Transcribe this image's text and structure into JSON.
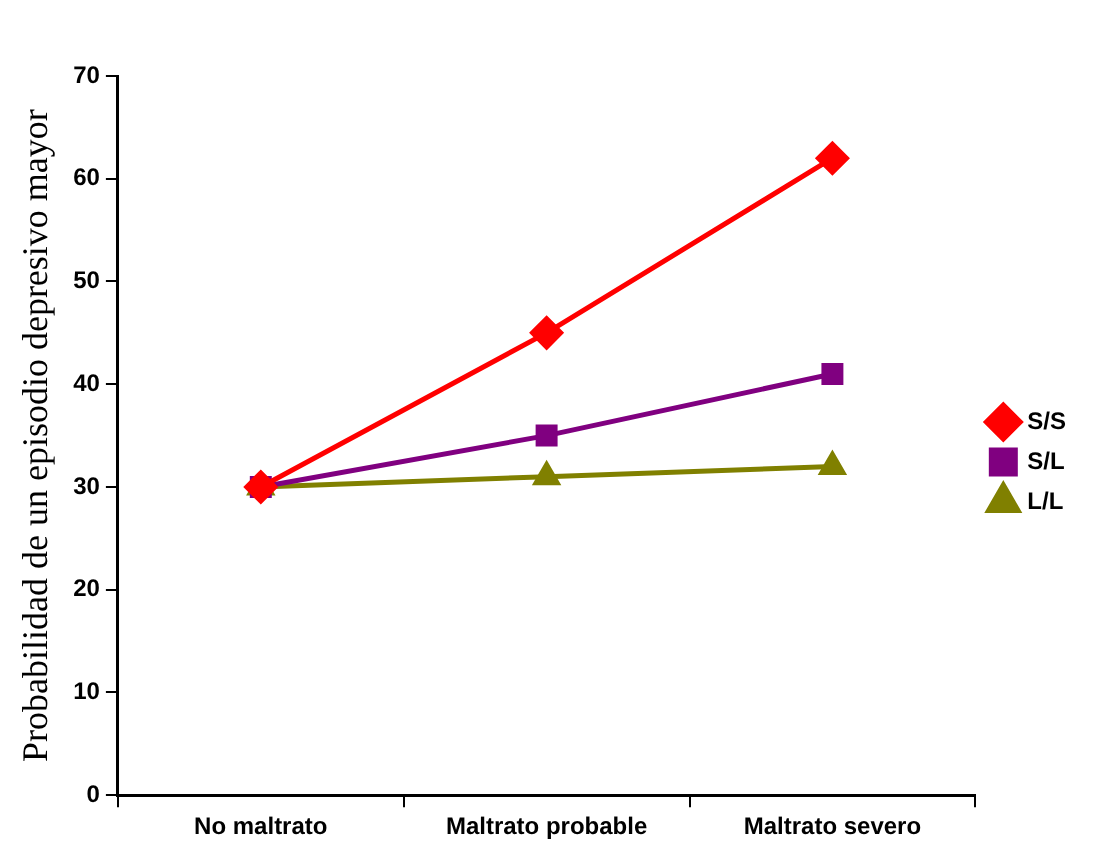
{
  "chart_data": {
    "type": "line",
    "ylabel": "Probabilidad de un episodio depresivo mayor",
    "categories": [
      "No maltrato",
      "Maltrato probable",
      "Maltrato severo"
    ],
    "series": [
      {
        "name": "S/S",
        "color": "#ff0000",
        "marker": "diamond",
        "values": [
          30,
          45,
          62
        ]
      },
      {
        "name": "S/L",
        "color": "#800080",
        "marker": "square",
        "values": [
          30,
          35,
          41
        ]
      },
      {
        "name": "L/L",
        "color": "#808000",
        "marker": "triangle",
        "values": [
          30,
          31,
          32
        ]
      }
    ],
    "ylim": [
      0,
      70
    ],
    "yticks": [
      0,
      10,
      20,
      30,
      40,
      50,
      60,
      70
    ],
    "grid": false,
    "legend": "right",
    "line_style": "solid"
  }
}
